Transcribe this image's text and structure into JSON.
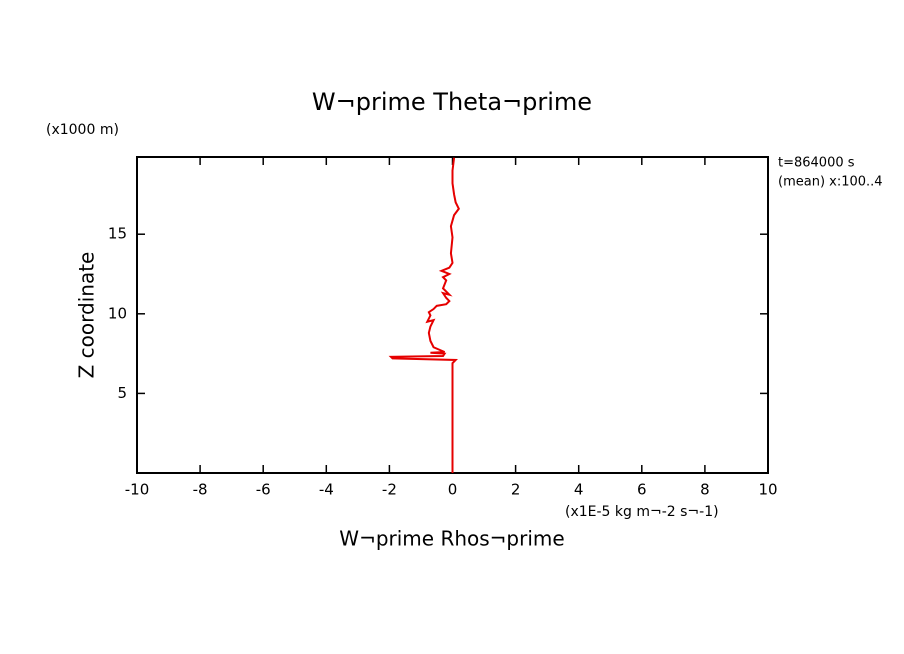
{
  "chart_data": {
    "type": "line",
    "title": "W¬prime Theta¬prime",
    "x_label": "W¬prime Rhos¬prime",
    "y_label": "Z coordinate",
    "y_unit": "(x1000 m)",
    "x_unit": "(x1E-5 kg m¬-2 s¬-1)",
    "annotations": [
      "t=864000 s",
      "(mean) x:100..4"
    ],
    "x": [
      0,
      0,
      0.1,
      -1.9,
      -1.95,
      -0.3,
      -0.25,
      -0.7,
      -0.25,
      -0.6,
      -0.7,
      -0.75,
      -0.7,
      -0.6,
      -0.8,
      -0.7,
      -0.75,
      -0.6,
      -0.5,
      -0.2,
      -0.1,
      -0.2,
      -0.3,
      -0.1,
      -0.3,
      -0.2,
      -0.3,
      -0.1,
      -0.35,
      -0.1,
      0.0,
      -0.05,
      0.0,
      -0.05,
      0.05,
      0.2,
      0.1,
      0.05,
      0.0,
      0.0,
      0.05
    ],
    "series": [
      {
        "color": "#e60000",
        "values": [
          0,
          6.9,
          7.1,
          7.2,
          7.3,
          7.35,
          7.5,
          7.55,
          7.6,
          7.9,
          8.3,
          8.8,
          9.2,
          9.6,
          9.5,
          9.9,
          10.1,
          10.3,
          10.5,
          10.6,
          10.8,
          11.0,
          11.3,
          11.2,
          11.6,
          12.1,
          12.3,
          12.5,
          12.7,
          12.9,
          13.2,
          13.8,
          14.8,
          15.5,
          16.2,
          16.6,
          17.0,
          17.5,
          18.2,
          19.0,
          19.8
        ]
      }
    ],
    "xlim": [
      -10,
      10
    ],
    "xticks": [
      -10,
      -8,
      -6,
      -4,
      -2,
      0,
      2,
      4,
      6,
      8,
      10
    ],
    "ylim": [
      0,
      19.85
    ],
    "yticks": [
      5,
      10,
      15
    ]
  }
}
